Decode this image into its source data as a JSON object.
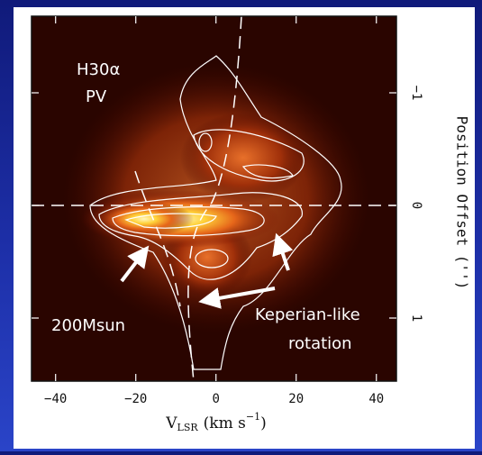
{
  "chart_data": {
    "type": "image",
    "annotations": [
      "H30α",
      "PV",
      "200Msun",
      "Keperian-like",
      "rotation"
    ],
    "xlabel": {
      "main": "V",
      "sub": "LSR",
      "unit": "(km s",
      "sup": "−1",
      "close": ")"
    },
    "ylabel": "Position Offset ('')",
    "xlim": [
      -46,
      45
    ],
    "ylim": [
      -1.68,
      1.56
    ],
    "xticks": [
      {
        "value": -40,
        "label": "−40"
      },
      {
        "value": -20,
        "label": "−20"
      },
      0,
      20,
      40
    ],
    "yticks": [
      {
        "value": -1,
        "label": "−1"
      },
      0,
      1
    ]
  }
}
